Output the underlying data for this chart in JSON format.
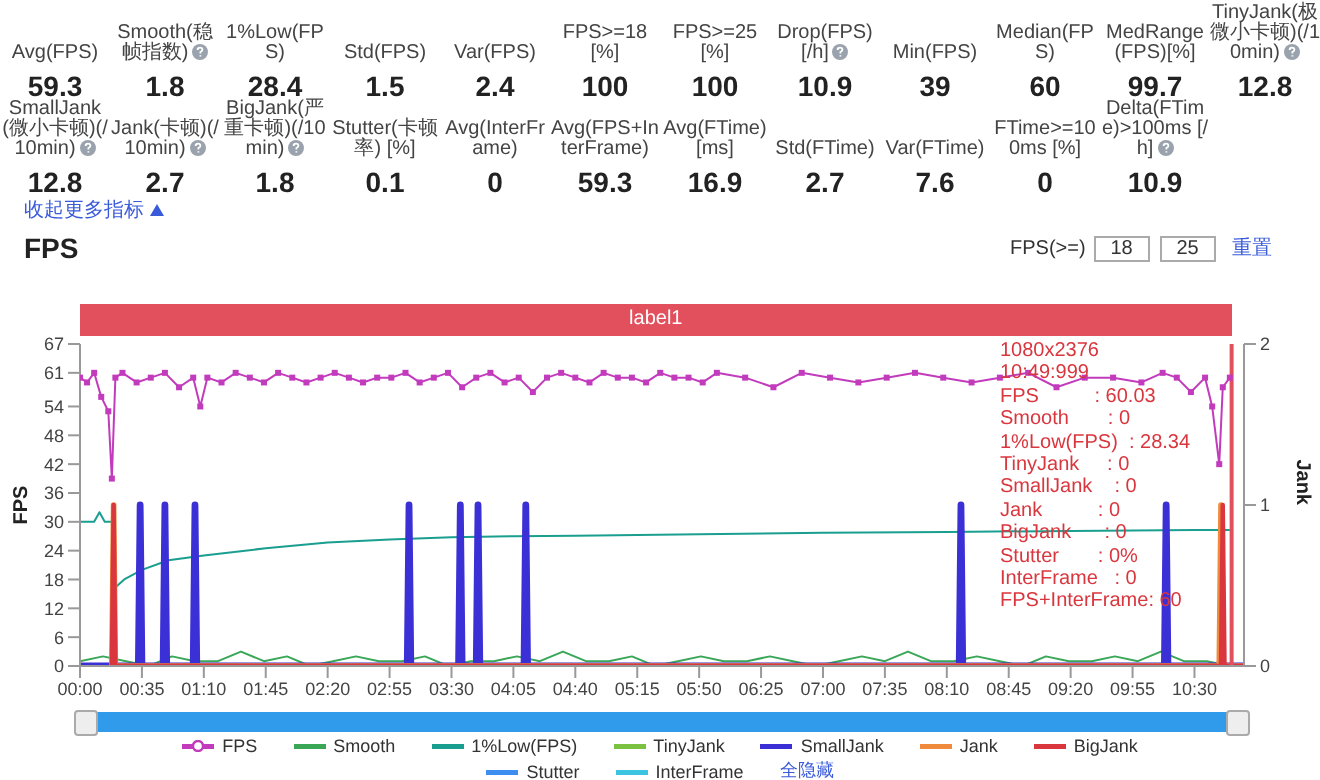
{
  "chart_data": [
    {
      "type": "other",
      "categories": [
        "Avg(FPS)",
        "Smooth(稳帧指数)",
        "1%Low(FPS)",
        "Std(FPS)",
        "Var(FPS)",
        "FPS>=18 [%]",
        "FPS>=25 [%]",
        "Drop(FPS) [/h]",
        "Min(FPS)",
        "Median(FPS)",
        "MedRange(FPS)[%]",
        "TinyJank(极微小卡顿)(/10min)",
        "SmallJank(微小卡顿)(/10min)",
        "Jank(卡顿)(/10min)",
        "BigJank(严重卡顿)(/10min)",
        "Stutter(卡顿率) [%]",
        "Avg(InterFrame)",
        "Avg(FPS+InterFrame)",
        "Avg(FTime) [ms]",
        "Std(FTime)",
        "Var(FTime)",
        "FTime>=100ms [%]",
        "Delta(FTime)>100ms [/h]"
      ],
      "values": [
        59.3,
        1.8,
        28.4,
        1.5,
        2.4,
        100,
        100,
        10.9,
        39,
        60,
        99.7,
        12.8,
        12.8,
        2.7,
        1.8,
        0.1,
        0,
        59.3,
        16.9,
        2.7,
        7.6,
        0,
        10.9
      ],
      "data_labels": true,
      "annotations": [
        "收起更多指标"
      ]
    },
    {
      "type": "line",
      "title": "FPS",
      "ylabel": "FPS",
      "y2label": "Jank",
      "xlim": [
        0,
        658
      ],
      "xticks": [
        {
          "value": 0,
          "label": "00:00"
        },
        {
          "value": 35,
          "label": "00:35"
        },
        {
          "value": 70,
          "label": "01:10"
        },
        {
          "value": 105,
          "label": "01:45"
        },
        {
          "value": 140,
          "label": "02:20"
        },
        {
          "value": 175,
          "label": "02:55"
        },
        {
          "value": 210,
          "label": "03:30"
        },
        {
          "value": 245,
          "label": "04:05"
        },
        {
          "value": 280,
          "label": "04:40"
        },
        {
          "value": 315,
          "label": "05:15"
        },
        {
          "value": 350,
          "label": "05:50"
        },
        {
          "value": 385,
          "label": "06:25"
        },
        {
          "value": 420,
          "label": "07:00"
        },
        {
          "value": 455,
          "label": "07:35"
        },
        {
          "value": 490,
          "label": "08:10"
        },
        {
          "value": 525,
          "label": "08:45"
        },
        {
          "value": 560,
          "label": "09:20"
        },
        {
          "value": 595,
          "label": "09:55"
        },
        {
          "value": 630,
          "label": "10:30"
        }
      ],
      "ylim": [
        0,
        67
      ],
      "yticks": [
        0,
        6,
        12,
        18,
        24,
        30,
        36,
        42,
        48,
        54,
        61,
        67
      ],
      "y2lim": [
        0,
        2
      ],
      "y2ticks": [
        0,
        1,
        2
      ],
      "legend": "bottom",
      "ref_lines": [
        {
          "axis": "x",
          "value": 651,
          "color": "#e2505e"
        }
      ],
      "annotations": [
        "FPS(>=)",
        "18",
        "25",
        "重置",
        "全隐藏",
        "1080x2376",
        "10:49:999",
        "FPS          : 60.03",
        "Smooth       : 0",
        "1%Low(FPS)  : 28.34",
        "TinyJank     : 0",
        "SmallJank    : 0",
        "Jank          : 0",
        "BigJank      : 0",
        "Stutter       : 0%",
        "InterFrame   : 0",
        "FPS+InterFrame: 60",
        "label1"
      ],
      "series": [
        {
          "name": "FPS",
          "color": "#c23bbd",
          "marker": "square",
          "x": [
            0,
            4,
            8,
            12,
            16,
            18,
            20,
            24,
            32,
            40,
            48,
            56,
            64,
            68,
            72,
            80,
            88,
            96,
            104,
            112,
            120,
            128,
            136,
            144,
            152,
            160,
            168,
            176,
            184,
            192,
            200,
            208,
            216,
            224,
            232,
            240,
            248,
            256,
            264,
            272,
            280,
            288,
            296,
            304,
            312,
            320,
            328,
            336,
            344,
            352,
            360,
            376,
            392,
            408,
            424,
            440,
            456,
            472,
            488,
            504,
            520,
            536,
            552,
            568,
            584,
            600,
            612,
            620,
            628,
            636,
            640,
            644,
            646,
            650
          ],
          "values": [
            60,
            59,
            61,
            56,
            53,
            39,
            60,
            61,
            59,
            60,
            61,
            58,
            60,
            54,
            60,
            59,
            61,
            60,
            59,
            61,
            60,
            59,
            60,
            61,
            60,
            59,
            60,
            60,
            61,
            59,
            60,
            61,
            58,
            60,
            61,
            59,
            60,
            57,
            60,
            61,
            60,
            59,
            61,
            60,
            60,
            59,
            61,
            60,
            60,
            59,
            61,
            60,
            58,
            61,
            60,
            59,
            60,
            61,
            60,
            59,
            60,
            61,
            58,
            60,
            60,
            59,
            61,
            60,
            57,
            60,
            54,
            42,
            58,
            60
          ]
        },
        {
          "name": "Smooth",
          "color": "#3aa757",
          "x": [
            0,
            13,
            26,
            39,
            52,
            65,
            78,
            91,
            104,
            117,
            130,
            143,
            156,
            169,
            182,
            195,
            208,
            221,
            234,
            247,
            260,
            273,
            286,
            299,
            312,
            325,
            338,
            351,
            364,
            377,
            390,
            403,
            416,
            429,
            442,
            455,
            468,
            481,
            494,
            507,
            520,
            533,
            546,
            559,
            572,
            585,
            598,
            611,
            624,
            637,
            650
          ],
          "values": [
            1,
            2,
            1,
            0,
            2,
            1,
            1,
            3,
            1,
            2,
            0,
            1,
            2,
            1,
            1,
            2,
            0,
            1,
            1,
            2,
            1,
            3,
            1,
            1,
            2,
            0,
            1,
            2,
            1,
            1,
            2,
            1,
            0,
            1,
            2,
            1,
            3,
            1,
            1,
            2,
            1,
            0,
            2,
            1,
            1,
            2,
            1,
            3,
            1,
            1,
            0
          ]
        },
        {
          "name": "1%Low(FPS)",
          "color": "#1a9e8f",
          "x": [
            0,
            8,
            11,
            14,
            18,
            19,
            25,
            35,
            50,
            70,
            105,
            140,
            175,
            210,
            245,
            280,
            350,
            420,
            490,
            560,
            630,
            650
          ],
          "values": [
            30,
            30,
            32,
            30,
            30,
            16,
            18,
            20,
            22,
            23,
            24.5,
            25.7,
            26.3,
            26.8,
            27,
            27.1,
            27.4,
            27.7,
            27.9,
            28.1,
            28.3,
            28.3
          ]
        },
        {
          "name": "TinyJank",
          "color": "#7cc242"
        },
        {
          "name": "SmallJank",
          "color": "#3b2fd6",
          "axis": "y2",
          "x": [
            0,
            33,
            34,
            35,
            47,
            48,
            49,
            64,
            65,
            66,
            185,
            186,
            187,
            214,
            215,
            216,
            224,
            225,
            226,
            251,
            252,
            253,
            497,
            498,
            499,
            613,
            614,
            615,
            658
          ],
          "values": [
            0,
            0,
            1,
            0,
            0,
            1,
            0,
            0,
            1,
            0,
            0,
            1,
            0,
            0,
            1,
            0,
            0,
            1,
            0,
            0,
            1,
            0,
            0,
            1,
            0,
            0,
            1,
            0,
            0
          ]
        },
        {
          "name": "Jank",
          "color": "#f08a3c",
          "axis": "y2",
          "x": [
            18,
            19,
            20,
            644,
            645,
            646,
            658
          ],
          "values": [
            0,
            1,
            0,
            0,
            1,
            0,
            0
          ]
        },
        {
          "name": "BigJank",
          "color": "#d9363e",
          "axis": "y2",
          "x": [
            18,
            19,
            20,
            645,
            646,
            647,
            658
          ],
          "values": [
            0,
            1,
            0,
            0,
            1,
            0,
            0
          ]
        },
        {
          "name": "Stutter",
          "color": "#3d8ef0"
        },
        {
          "name": "InterFrame",
          "color": "#3cc4e0"
        }
      ]
    }
  ]
}
